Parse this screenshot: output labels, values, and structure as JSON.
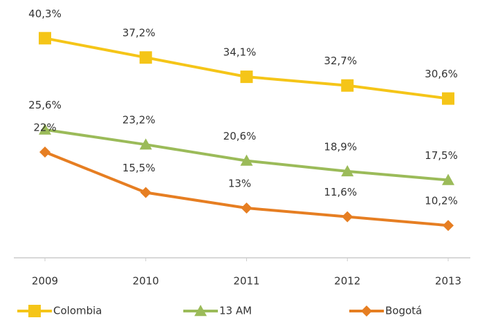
{
  "chart_data": {
    "type": "line",
    "categories": [
      "2009",
      "2010",
      "2011",
      "2012",
      "2013"
    ],
    "series": [
      {
        "name": "Colombia",
        "color": "#f5c518",
        "marker": "square",
        "values": [
          40.3,
          37.2,
          34.1,
          32.7,
          30.6
        ],
        "value_labels": [
          "40,3%",
          "37,2%",
          "34,1%",
          "32,7%",
          "30,6%"
        ]
      },
      {
        "name": "13 AM",
        "color": "#9bbb59",
        "marker": "triangle",
        "values": [
          25.6,
          23.2,
          20.6,
          18.9,
          17.5
        ],
        "value_labels": [
          "25,6%",
          "23,2%",
          "20,6%",
          "18,9%",
          "17,5%"
        ]
      },
      {
        "name": "Bogotá",
        "color": "#e67e22",
        "marker": "diamond",
        "values": [
          22,
          15.5,
          13,
          11.6,
          10.2
        ],
        "value_labels": [
          "22%",
          "15,5%",
          "13%",
          "11,6%",
          "10,2%"
        ]
      }
    ],
    "ylim": [
      5,
      42
    ]
  }
}
